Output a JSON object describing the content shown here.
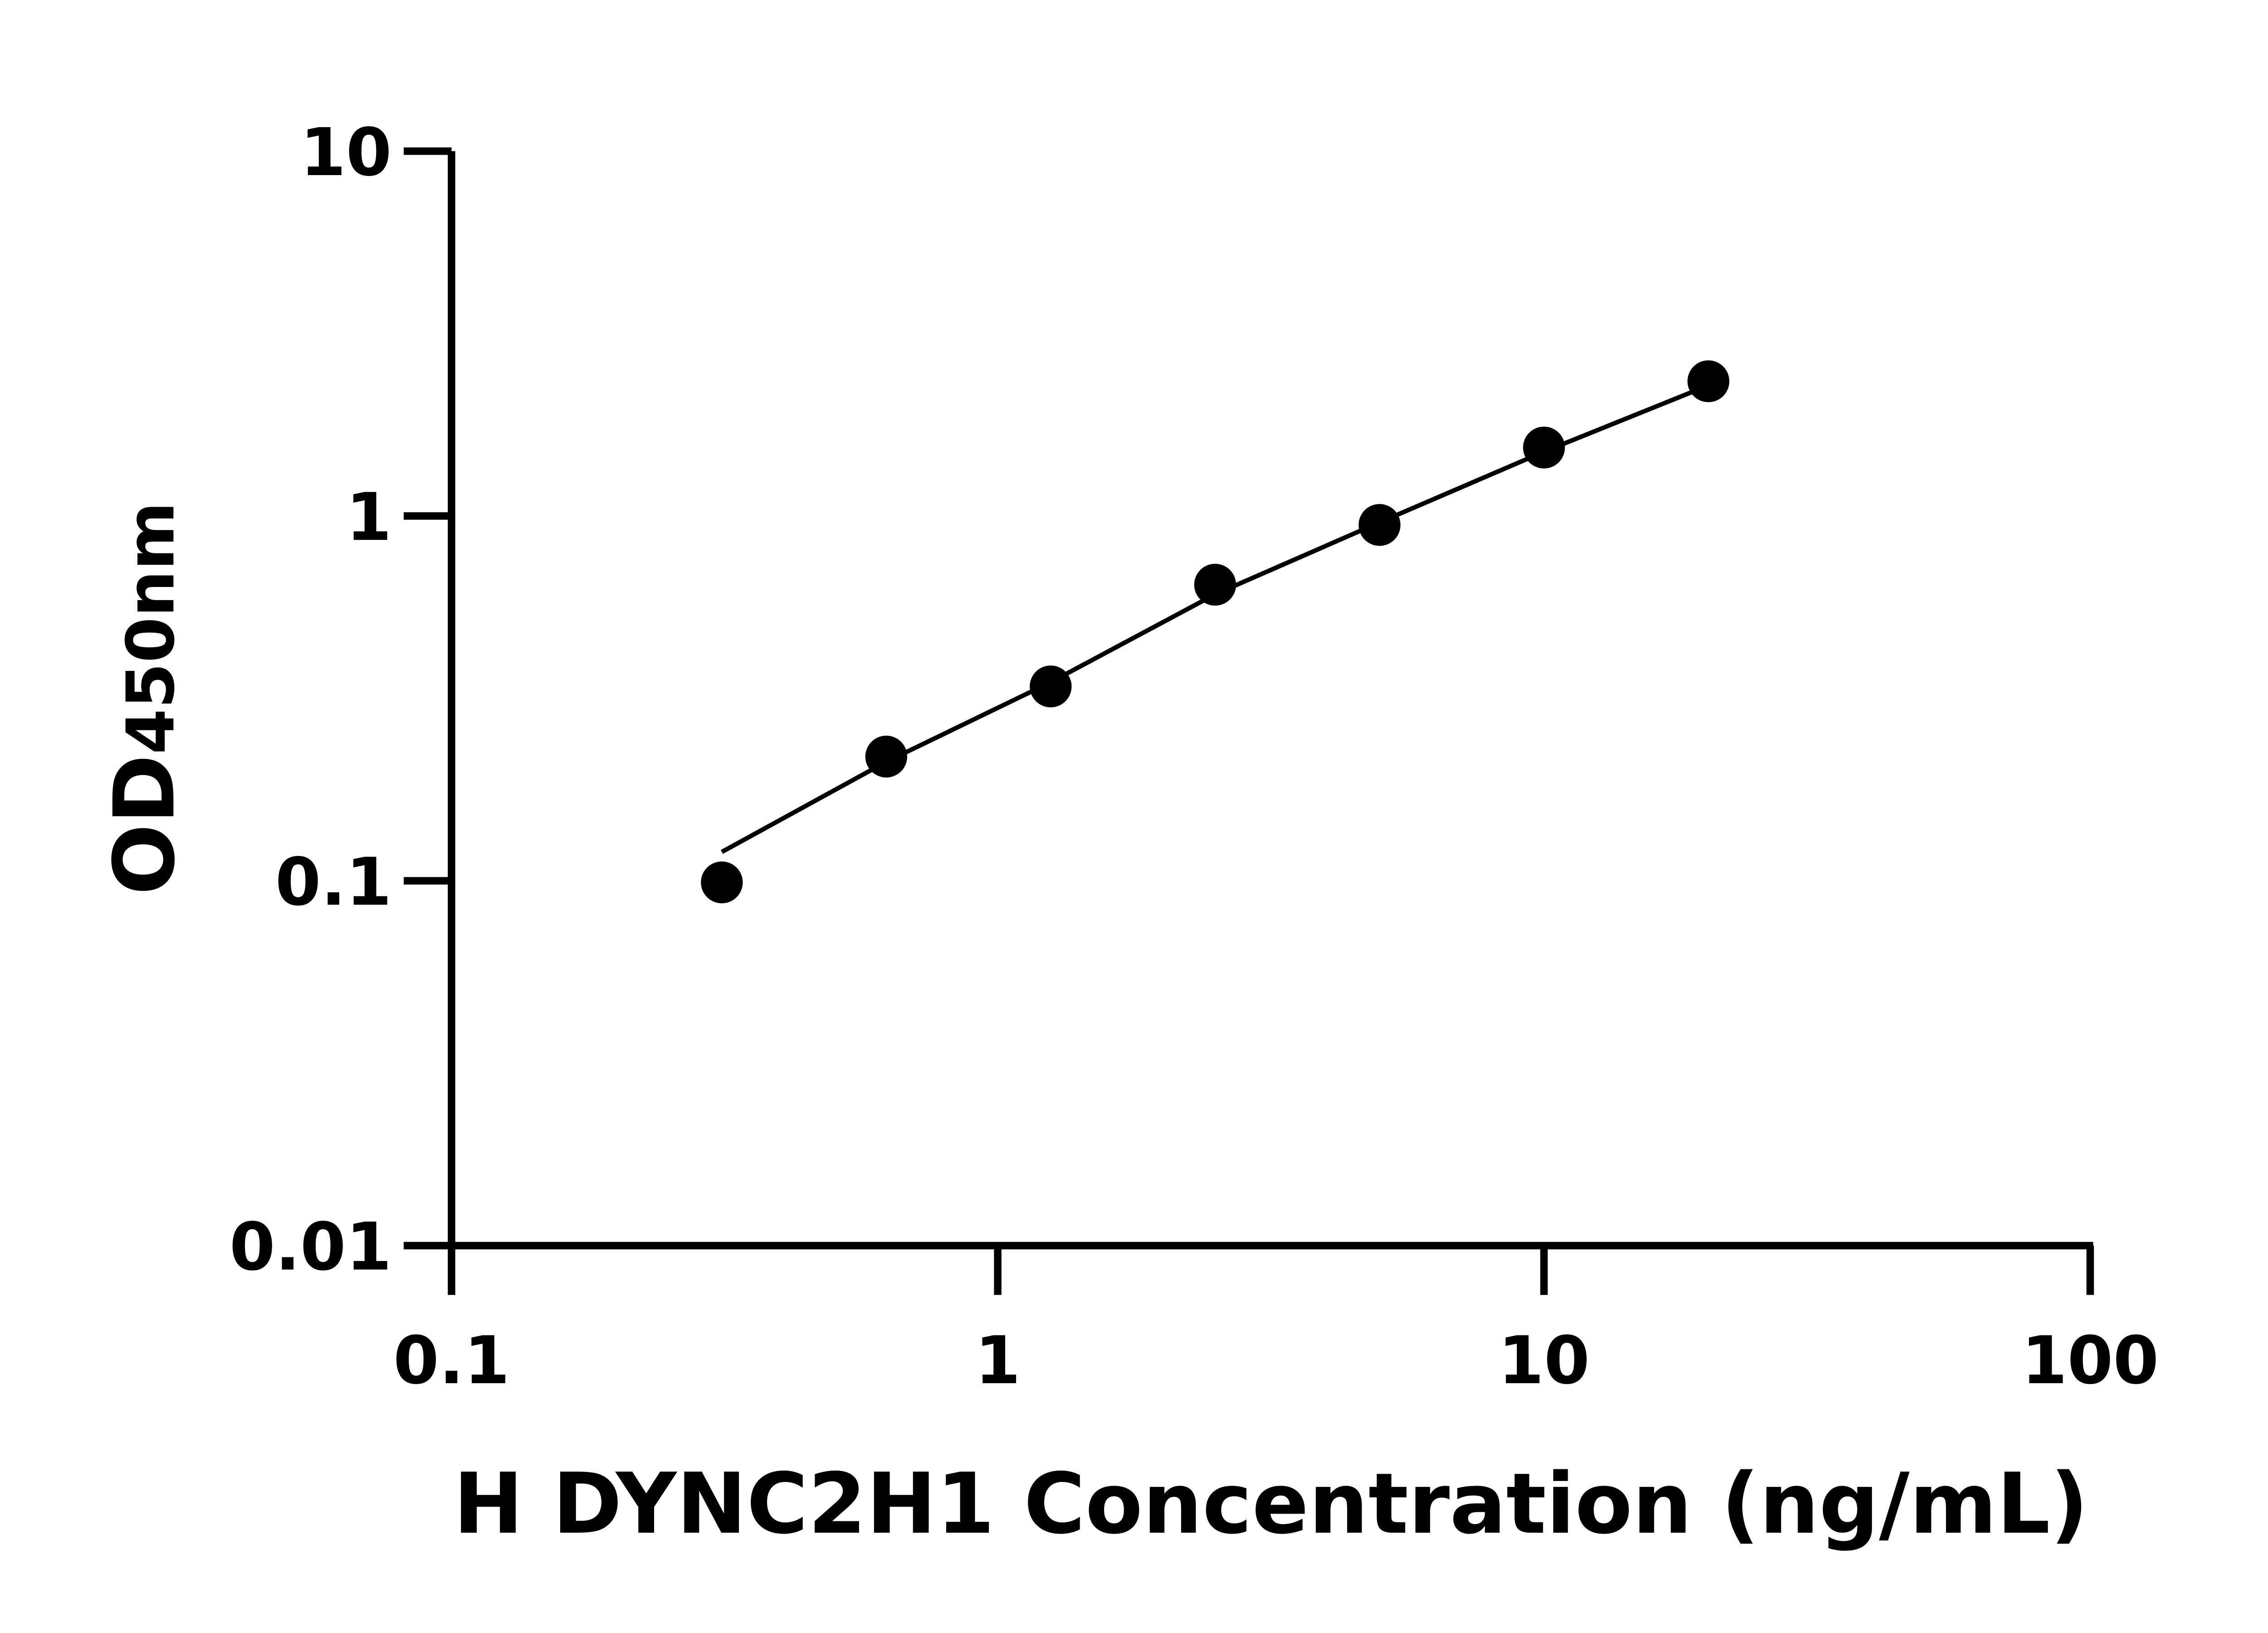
{
  "chart_data": {
    "type": "scatter",
    "xlabel": "H DYNC2H1 Concentration (ng/mL)",
    "ylabel_main": "OD",
    "ylabel_sub": "450nm",
    "x_scale": "log",
    "y_scale": "log",
    "xlim": [
      0.1,
      100
    ],
    "ylim": [
      0.01,
      10
    ],
    "x_ticks": [
      {
        "value": 0.1,
        "label": "0.1"
      },
      {
        "value": 1,
        "label": "1"
      },
      {
        "value": 10,
        "label": "10"
      },
      {
        "value": 100,
        "label": "100"
      }
    ],
    "y_ticks": [
      {
        "value": 0.01,
        "label": "0.01"
      },
      {
        "value": 0.1,
        "label": "0.1"
      },
      {
        "value": 1,
        "label": "1"
      },
      {
        "value": 10,
        "label": "10"
      }
    ],
    "grid": false,
    "marker_color": "#000000",
    "points": [
      {
        "x": 0.3125,
        "y": 0.099
      },
      {
        "x": 0.625,
        "y": 0.219
      },
      {
        "x": 1.25,
        "y": 0.341
      },
      {
        "x": 2.5,
        "y": 0.648
      },
      {
        "x": 5,
        "y": 0.945
      },
      {
        "x": 10,
        "y": 1.54
      },
      {
        "x": 20,
        "y": 2.34
      }
    ],
    "fit_curve": [
      {
        "x": 0.3125,
        "y": 0.12
      },
      {
        "x": 0.625,
        "y": 0.212
      },
      {
        "x": 1.25,
        "y": 0.35
      },
      {
        "x": 2.5,
        "y": 0.61
      },
      {
        "x": 5,
        "y": 0.96
      },
      {
        "x": 10,
        "y": 1.5
      },
      {
        "x": 20,
        "y": 2.28
      }
    ]
  }
}
